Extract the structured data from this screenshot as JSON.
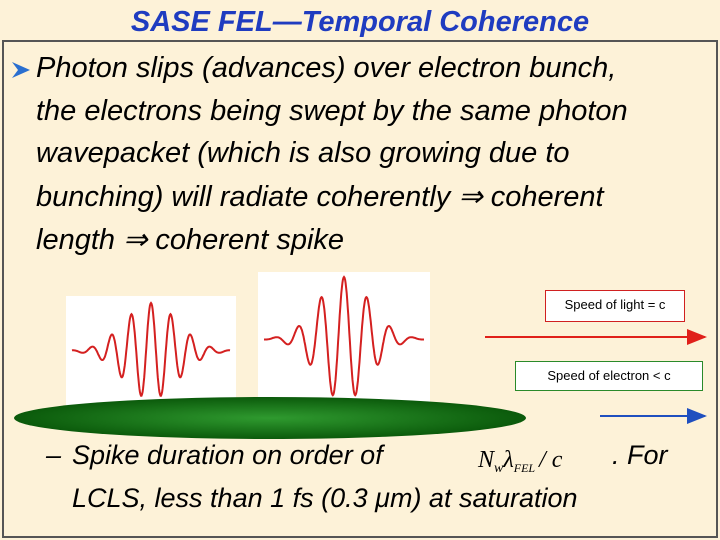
{
  "title": "SASE FEL—Temporal Coherence",
  "bullet": {
    "lines": [
      "Photon slips (advances) over electron bunch,",
      "the electrons being swept by the same photon",
      "wavepacket (which is also growing due to",
      "bunching) will radiate coherently ⇒ coherent",
      "length ⇒ coherent spike"
    ]
  },
  "labels": {
    "light": "Speed of light = c",
    "electron": "Speed of electron < c"
  },
  "sub_bullet": {
    "dash": "–",
    "line1": "Spike duration on order of",
    "formula": [
      "N",
      "w",
      "λ",
      "FEL",
      "/ c"
    ],
    "line1_end": ". For",
    "line2": "LCLS, less than 1 fs (0.3 μm) at saturation"
  }
}
